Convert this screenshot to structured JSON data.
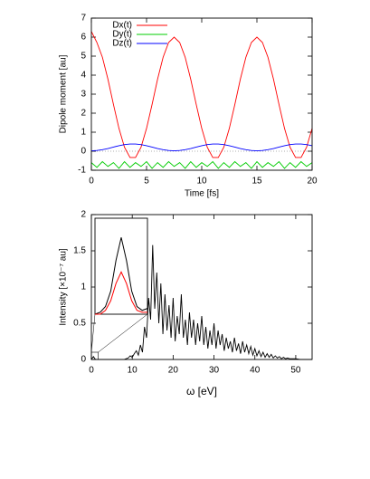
{
  "chart_data": [
    {
      "type": "line",
      "xlabel": "Time [fs]",
      "ylabel": "Dipole moment [au]",
      "x": [
        0,
        0.5,
        1,
        1.5,
        2,
        2.5,
        3,
        3.5,
        4,
        4.5,
        5,
        5.5,
        6,
        6.5,
        7,
        7.5,
        8,
        8.5,
        9,
        9.5,
        10,
        10.5,
        11,
        11.5,
        12,
        12.5,
        13,
        13.5,
        14,
        14.5,
        15,
        15.5,
        16,
        16.5,
        17,
        17.5,
        18,
        18.5,
        19,
        19.5,
        20
      ],
      "xlim": [
        0,
        20
      ],
      "xticks": [
        0,
        5,
        10,
        15,
        20
      ],
      "ylim": [
        -1,
        7
      ],
      "yticks": [
        -1,
        0,
        1,
        2,
        3,
        4,
        5,
        6,
        7
      ],
      "legend": "top-left",
      "zero_line": true,
      "series": [
        {
          "name": "Dx(t)",
          "color": "#ff0000",
          "values": [
            6.3,
            5.72,
            4.94,
            3.79,
            2.46,
            1.2,
            0.21,
            -0.33,
            -0.33,
            0.21,
            1.2,
            2.46,
            3.79,
            4.94,
            5.72,
            6.0,
            5.72,
            4.94,
            3.79,
            2.46,
            1.2,
            0.21,
            -0.33,
            -0.33,
            0.21,
            1.2,
            2.46,
            3.79,
            4.94,
            5.72,
            6.0,
            5.72,
            4.94,
            3.79,
            2.46,
            1.2,
            0.21,
            -0.33,
            -0.33,
            0.21,
            1.2
          ]
        },
        {
          "name": "Dy(t)",
          "color": "#00cc00",
          "values": [
            -0.6,
            -0.85,
            -0.55,
            -0.8,
            -0.6,
            -0.9,
            -0.55,
            -0.85,
            -0.6,
            -0.8,
            -0.55,
            -0.9,
            -0.6,
            -0.85,
            -0.55,
            -0.8,
            -0.6,
            -0.9,
            -0.55,
            -0.85,
            -0.6,
            -0.8,
            -0.55,
            -0.9,
            -0.6,
            -0.85,
            -0.55,
            -0.8,
            -0.6,
            -0.9,
            -0.55,
            -0.85,
            -0.6,
            -0.8,
            -0.55,
            -0.9,
            -0.6,
            -0.85,
            -0.55,
            -0.8,
            -0.6
          ]
        },
        {
          "name": "Dz(t)",
          "color": "#0000ff",
          "values": [
            0.02,
            0.04,
            0.08,
            0.14,
            0.22,
            0.29,
            0.35,
            0.38,
            0.38,
            0.35,
            0.29,
            0.22,
            0.14,
            0.08,
            0.04,
            0.02,
            0.04,
            0.08,
            0.14,
            0.22,
            0.29,
            0.35,
            0.38,
            0.38,
            0.35,
            0.29,
            0.22,
            0.14,
            0.08,
            0.04,
            0.02,
            0.04,
            0.08,
            0.14,
            0.22,
            0.29,
            0.35,
            0.38,
            0.38,
            0.35,
            0.29
          ]
        }
      ]
    },
    {
      "type": "line",
      "xlabel": "ω [eV]",
      "ylabel": "Intensity [×10⁻⁷ au]",
      "x": [
        0,
        0.5,
        1,
        1.5,
        2,
        8,
        8.5,
        9,
        9.5,
        10,
        10.5,
        11,
        11.5,
        12,
        12.5,
        13,
        13.5,
        14,
        14.5,
        15,
        15.5,
        16,
        16.5,
        17,
        17.5,
        18,
        18.5,
        19,
        19.5,
        20,
        20.5,
        21,
        21.5,
        22,
        22.5,
        23,
        23.5,
        24,
        24.5,
        25,
        25.5,
        26,
        26.5,
        27,
        27.5,
        28,
        28.5,
        29,
        29.5,
        30,
        30.5,
        31,
        31.5,
        32,
        32.5,
        33,
        33.5,
        34,
        34.5,
        35,
        35.5,
        36,
        36.5,
        37,
        37.5,
        38,
        38.5,
        39,
        39.5,
        40,
        40.5,
        41,
        41.5,
        42,
        42.5,
        43,
        43.5,
        44,
        44.5,
        45,
        45.5,
        46,
        46.5,
        47,
        47.5,
        48,
        48.5,
        49,
        49.5,
        50,
        51,
        52,
        53,
        54
      ],
      "xlim": [
        0,
        54
      ],
      "xticks": [
        0,
        10,
        20,
        30,
        40,
        50
      ],
      "ylim": [
        0,
        2
      ],
      "yticks": [
        0,
        0.5,
        1,
        1.5,
        2
      ],
      "series": [
        {
          "color": "#000000",
          "values": [
            0,
            0.04,
            0,
            0,
            0,
            0,
            0.01,
            0.02,
            0.05,
            0.03,
            0.08,
            0.12,
            0.06,
            0.2,
            0.1,
            0.45,
            0.3,
            0.85,
            0.55,
            1.58,
            0.7,
            1.2,
            0.5,
            1.05,
            0.35,
            0.9,
            0.4,
            0.75,
            0.3,
            0.85,
            0.25,
            0.6,
            0.35,
            0.9,
            0.3,
            0.55,
            0.2,
            0.65,
            0.3,
            0.55,
            0.2,
            0.5,
            0.25,
            0.6,
            0.2,
            0.45,
            0.15,
            0.4,
            0.2,
            0.5,
            0.15,
            0.4,
            0.2,
            0.35,
            0.12,
            0.3,
            0.15,
            0.25,
            0.1,
            0.3,
            0.12,
            0.22,
            0.08,
            0.25,
            0.1,
            0.2,
            0.08,
            0.18,
            0.06,
            0.15,
            0.05,
            0.12,
            0.04,
            0.1,
            0.03,
            0.08,
            0.03,
            0.07,
            0.02,
            0.05,
            0.02,
            0.04,
            0.01,
            0.03,
            0.01,
            0.02,
            0.01,
            0.01,
            0.01,
            0.01,
            0,
            0,
            0,
            0
          ]
        }
      ],
      "inset": {
        "x": [
          0,
          0.1,
          0.2,
          0.3,
          0.4,
          0.5,
          0.6,
          0.7,
          0.8,
          0.9,
          1
        ],
        "xlim": [
          0,
          1
        ],
        "ylim": [
          0,
          0.05
        ],
        "series": [
          {
            "color": "#000000",
            "values": [
              0,
              0.001,
              0.004,
              0.012,
              0.028,
              0.04,
              0.028,
              0.012,
              0.004,
              0.002,
              0.003
            ]
          },
          {
            "color": "#ff0000",
            "values": [
              0,
              0,
              0.002,
              0.007,
              0.016,
              0.022,
              0.016,
              0.007,
              0.002,
              0.001,
              0.001
            ]
          }
        ]
      }
    }
  ]
}
